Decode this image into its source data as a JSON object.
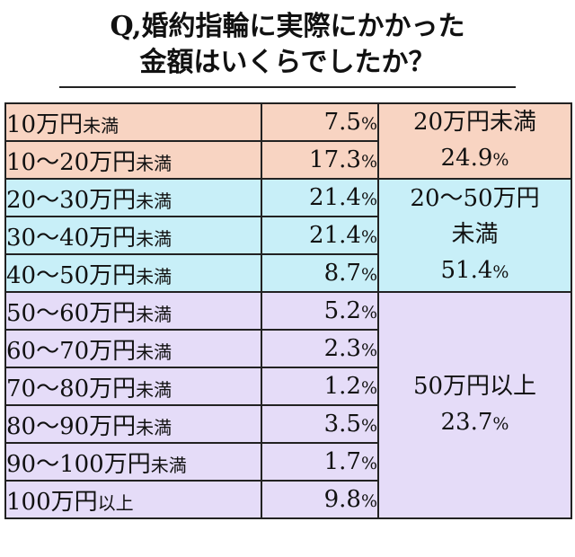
{
  "title": {
    "line1": "Q,婚約指輪に実際にかかった",
    "line2": "金額はいくらでしたか？"
  },
  "colors": {
    "group1": "#f8d4c2",
    "group2": "#c8eff8",
    "group3": "#e5dcf8",
    "border": "#222222"
  },
  "chart_data": {
    "type": "table",
    "unit": "%",
    "rows": [
      {
        "label": "10万円",
        "suffix": "未満",
        "value": 7.5,
        "value_text": "7.5",
        "group": 0
      },
      {
        "label": "10～20万円",
        "suffix": "未満",
        "value": 17.3,
        "value_text": "17.3",
        "group": 0
      },
      {
        "label": "20～30万円",
        "suffix": "未満",
        "value": 21.4,
        "value_text": "21.4",
        "group": 1
      },
      {
        "label": "30～40万円",
        "suffix": "未満",
        "value": 21.4,
        "value_text": "21.4",
        "group": 1
      },
      {
        "label": "40～50万円",
        "suffix": "未満",
        "value": 8.7,
        "value_text": "8.7",
        "group": 1
      },
      {
        "label": "50～60万円",
        "suffix": "未満",
        "value": 5.2,
        "value_text": "5.2",
        "group": 2
      },
      {
        "label": "60～70万円",
        "suffix": "未満",
        "value": 2.3,
        "value_text": "2.3",
        "group": 2
      },
      {
        "label": "70～80万円",
        "suffix": "未満",
        "value": 1.2,
        "value_text": "1.2",
        "group": 2
      },
      {
        "label": "80～90万円",
        "suffix": "未満",
        "value": 3.5,
        "value_text": "3.5",
        "group": 2
      },
      {
        "label": "90～100万円",
        "suffix": "未満",
        "value": 1.7,
        "value_text": "1.7",
        "group": 2
      },
      {
        "label": "100万円",
        "suffix": "以上",
        "value": 9.8,
        "value_text": "9.8",
        "group": 2
      }
    ],
    "groups": [
      {
        "label_lines": [
          "20万円未満"
        ],
        "value": 24.9,
        "value_text": "24.9",
        "start": 0,
        "span": 2
      },
      {
        "label_lines": [
          "20～50万円",
          "未満"
        ],
        "value": 51.4,
        "value_text": "51.4",
        "start": 2,
        "span": 3
      },
      {
        "label_lines": [
          "50万円以上"
        ],
        "value": 23.7,
        "value_text": "23.7",
        "start": 5,
        "span": 6
      }
    ]
  }
}
